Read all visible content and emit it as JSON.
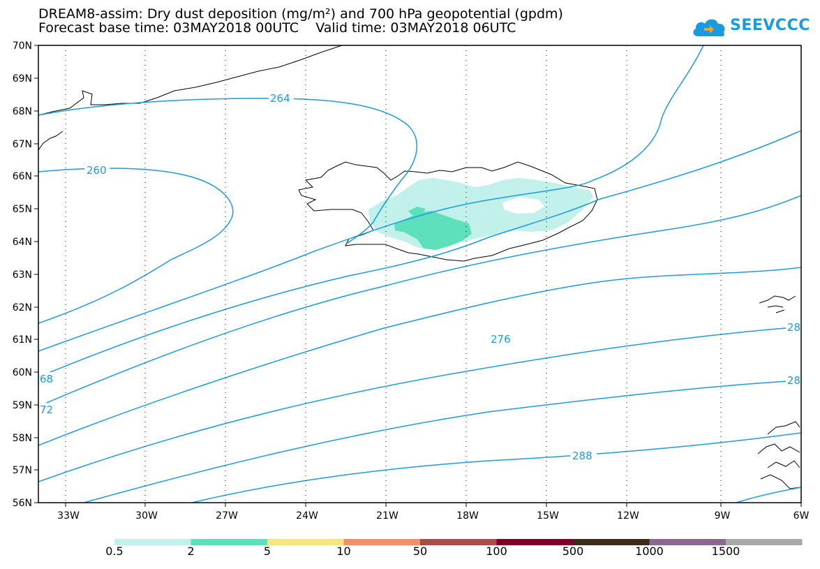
{
  "title_line1": "DREAM8-assim: Dry dust deposition (mg/m²) and 700 hPa geopotential (gpdm)",
  "title_line2": "Forecast base time: 03MAY2018 00UTC    Valid time: 03MAY2018 06UTC",
  "logo": {
    "text": "SEEVCCC",
    "icon": "cloud-icon",
    "color": "#1a9be0"
  },
  "map": {
    "lat_labels": [
      "70N",
      "69N",
      "68N",
      "67N",
      "66N",
      "65N",
      "64N",
      "63N",
      "62N",
      "61N",
      "60N",
      "59N",
      "58N",
      "57N",
      "56N"
    ],
    "lon_labels": [
      "33W",
      "30W",
      "27W",
      "24W",
      "21W",
      "18W",
      "15W",
      "12W",
      "9W",
      "6W"
    ],
    "contour_color": "#1a9be0",
    "contour_labels": [
      "264",
      "260",
      "276",
      "288",
      "68",
      "72",
      "28",
      "28"
    ]
  },
  "legend": {
    "labels": [
      "0.5",
      "2",
      "5",
      "10",
      "50",
      "100",
      "500",
      "1000",
      "1500"
    ],
    "colors": [
      "#c2f0ea",
      "#5ee0bd",
      "#f7e67e",
      "#ef8f6e",
      "#a54f48",
      "#7e0028",
      "#3e2a18",
      "#8b6892",
      "#a8a8a8"
    ]
  }
}
